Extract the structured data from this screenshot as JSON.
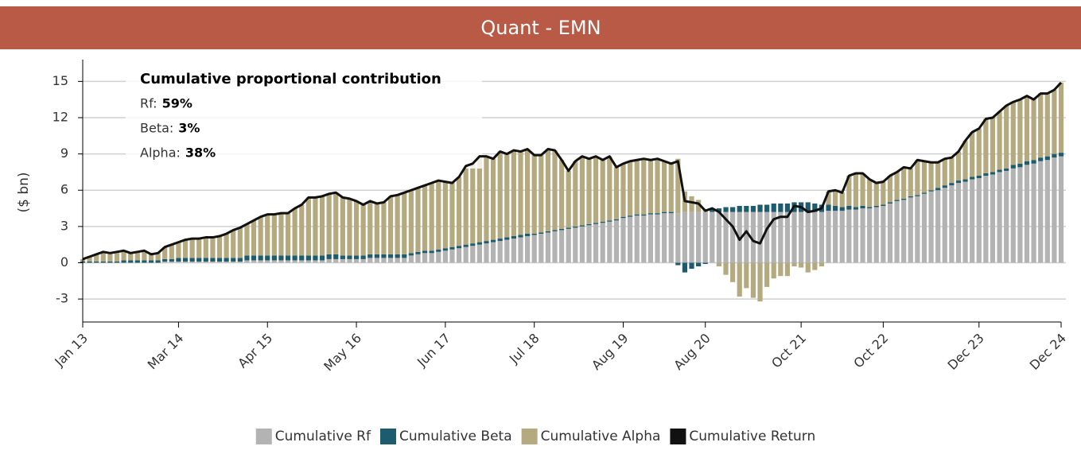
{
  "chart_data": {
    "type": "bar",
    "stacked": true,
    "title": "Quant - EMN",
    "y_label": "($ bn)",
    "categories": [
      "Jan 13",
      null,
      null,
      null,
      null,
      null,
      null,
      null,
      null,
      null,
      null,
      null,
      null,
      null,
      "Mar 14",
      null,
      null,
      null,
      null,
      null,
      null,
      null,
      null,
      null,
      null,
      null,
      null,
      "Apr 15",
      null,
      null,
      null,
      null,
      null,
      null,
      null,
      null,
      null,
      null,
      null,
      null,
      "May 16",
      null,
      null,
      null,
      null,
      null,
      null,
      null,
      null,
      null,
      null,
      null,
      null,
      "Jun 17",
      null,
      null,
      null,
      null,
      null,
      null,
      null,
      null,
      null,
      null,
      null,
      null,
      "Jul 18",
      null,
      null,
      null,
      null,
      null,
      null,
      null,
      null,
      null,
      null,
      null,
      null,
      "Aug 19",
      null,
      null,
      null,
      null,
      null,
      null,
      null,
      null,
      null,
      null,
      null,
      "Aug 20",
      null,
      null,
      null,
      null,
      null,
      null,
      null,
      null,
      null,
      null,
      null,
      null,
      null,
      "Oct 21",
      null,
      null,
      null,
      null,
      null,
      null,
      null,
      null,
      null,
      null,
      null,
      "Oct 22",
      null,
      null,
      null,
      null,
      null,
      null,
      null,
      null,
      null,
      null,
      null,
      null,
      null,
      "Dec 23",
      null,
      null,
      null,
      null,
      null,
      null,
      null,
      null,
      null,
      null,
      null,
      "Dec 24"
    ],
    "series": [
      {
        "name": "Cumulative Rf",
        "type": "bar",
        "color": "#b3b3b3",
        "values": [
          0,
          0,
          0,
          0,
          0,
          0,
          0,
          0,
          0,
          0,
          0,
          0,
          0.1,
          0.1,
          0.1,
          0.1,
          0.1,
          0.1,
          0.1,
          0.1,
          0.1,
          0.1,
          0.1,
          0.1,
          0.2,
          0.2,
          0.2,
          0.2,
          0.2,
          0.2,
          0.2,
          0.2,
          0.2,
          0.2,
          0.2,
          0.2,
          0.3,
          0.3,
          0.3,
          0.3,
          0.3,
          0.3,
          0.4,
          0.4,
          0.4,
          0.4,
          0.4,
          0.4,
          0.6,
          0.7,
          0.8,
          0.8,
          0.9,
          1.0,
          1.1,
          1.2,
          1.3,
          1.4,
          1.5,
          1.6,
          1.7,
          1.8,
          1.9,
          2.0,
          2.1,
          2.2,
          2.3,
          2.4,
          2.5,
          2.6,
          2.7,
          2.8,
          2.9,
          3.0,
          3.1,
          3.2,
          3.3,
          3.4,
          3.5,
          3.7,
          3.8,
          3.9,
          3.9,
          4.0,
          4.0,
          4.1,
          4.1,
          4.1,
          4.2,
          4.2,
          4.2,
          4.2,
          4.2,
          4.2,
          4.2,
          4.2,
          4.2,
          4.2,
          4.2,
          4.2,
          4.2,
          4.2,
          4.2,
          4.2,
          4.2,
          4.2,
          4.2,
          4.2,
          4.2,
          4.3,
          4.3,
          4.3,
          4.4,
          4.4,
          4.5,
          4.5,
          4.6,
          4.7,
          4.9,
          5.1,
          5.2,
          5.4,
          5.5,
          5.7,
          5.9,
          6.0,
          6.2,
          6.4,
          6.6,
          6.7,
          6.9,
          7.0,
          7.2,
          7.3,
          7.5,
          7.6,
          7.8,
          7.9,
          8.1,
          8.2,
          8.4,
          8.5,
          8.7,
          8.8
        ]
      },
      {
        "name": "Cumulative Beta",
        "type": "bar",
        "color": "#1d5b6e",
        "values": [
          0.1,
          0.1,
          0.1,
          0.1,
          0.1,
          0.1,
          0.2,
          0.2,
          0.2,
          0.2,
          0.2,
          0.2,
          0.2,
          0.2,
          0.3,
          0.3,
          0.3,
          0.3,
          0.3,
          0.3,
          0.3,
          0.3,
          0.3,
          0.3,
          0.4,
          0.4,
          0.4,
          0.4,
          0.4,
          0.4,
          0.4,
          0.4,
          0.4,
          0.4,
          0.4,
          0.4,
          0.4,
          0.4,
          0.3,
          0.3,
          0.3,
          0.3,
          0.3,
          0.3,
          0.3,
          0.3,
          0.3,
          0.3,
          0.2,
          0.2,
          0.2,
          0.2,
          0.2,
          0.2,
          0.2,
          0.2,
          0.2,
          0.2,
          0.2,
          0.2,
          0.2,
          0.2,
          0.2,
          0.2,
          0.2,
          0.2,
          0.1,
          0.1,
          0.1,
          0.1,
          0.1,
          0.1,
          0.1,
          0.1,
          0.1,
          0.1,
          0.1,
          0.1,
          0.1,
          0.1,
          0.1,
          0.1,
          0.1,
          0.1,
          0.1,
          0.1,
          0.1,
          -0.2,
          -0.8,
          -0.5,
          -0.3,
          -0.1,
          0.2,
          0.3,
          0.4,
          0.4,
          0.5,
          0.5,
          0.5,
          0.6,
          0.6,
          0.7,
          0.7,
          0.7,
          0.8,
          0.8,
          0.8,
          0.7,
          0.6,
          0.5,
          0.4,
          0.3,
          0.3,
          0.2,
          0.2,
          0.1,
          0.1,
          0.1,
          0.1,
          0.1,
          0.1,
          0.1,
          0.1,
          0.1,
          0.1,
          0.2,
          0.2,
          0.2,
          0.2,
          0.2,
          0.2,
          0.2,
          0.2,
          0.2,
          0.2,
          0.2,
          0.3,
          0.3,
          0.3,
          0.3,
          0.3,
          0.3,
          0.3,
          0.3
        ]
      },
      {
        "name": "Cumulative Alpha",
        "type": "bar",
        "color": "#b5aa7f",
        "values": [
          0.2,
          0.4,
          0.6,
          0.8,
          0.7,
          0.8,
          0.8,
          0.6,
          0.7,
          0.8,
          0.5,
          0.6,
          1.0,
          1.2,
          1.3,
          1.5,
          1.6,
          1.6,
          1.7,
          1.7,
          1.8,
          2.0,
          2.3,
          2.5,
          2.6,
          2.9,
          3.2,
          3.4,
          3.4,
          3.5,
          3.5,
          3.9,
          4.2,
          4.8,
          4.8,
          4.9,
          5.0,
          5.1,
          4.8,
          4.7,
          4.5,
          4.2,
          4.4,
          4.2,
          4.3,
          4.8,
          4.9,
          5.1,
          5.2,
          5.3,
          5.4,
          5.6,
          5.7,
          5.5,
          5.3,
          5.7,
          6.5,
          6.6,
          7.1,
          7.0,
          6.7,
          7.2,
          6.9,
          7.1,
          6.9,
          7.0,
          6.5,
          6.4,
          6.8,
          6.6,
          5.7,
          4.7,
          5.4,
          5.7,
          5.4,
          5.5,
          5.1,
          5.3,
          4.3,
          4.4,
          4.5,
          4.5,
          4.6,
          4.4,
          4.5,
          4.2,
          4.0,
          4.5,
          1.7,
          1.3,
          1.0,
          0.2,
          0.1,
          -0.3,
          -1.0,
          -1.6,
          -2.8,
          -2.1,
          -2.9,
          -3.2,
          -2.0,
          -1.3,
          -1.1,
          -1.1,
          -0.3,
          -0.4,
          -0.8,
          -0.6,
          -0.3,
          1.1,
          1.3,
          1.2,
          2.5,
          2.8,
          2.7,
          2.3,
          1.9,
          1.9,
          2.2,
          2.3,
          2.6,
          2.3,
          2.9,
          2.6,
          2.3,
          2.1,
          2.2,
          2.1,
          2.4,
          3.2,
          3.7,
          3.9,
          4.5,
          4.5,
          4.8,
          5.2,
          5.2,
          5.3,
          5.4,
          5.0,
          5.3,
          5.2,
          5.3,
          5.8
        ]
      },
      {
        "name": "Cumulative Return",
        "type": "line",
        "color": "#111111",
        "values": [
          0.3,
          0.5,
          0.7,
          0.9,
          0.8,
          0.9,
          1.0,
          0.8,
          0.9,
          1.0,
          0.7,
          0.8,
          1.3,
          1.5,
          1.7,
          1.9,
          2.0,
          2.0,
          2.1,
          2.1,
          2.2,
          2.4,
          2.7,
          2.9,
          3.2,
          3.5,
          3.8,
          4.0,
          4.0,
          4.1,
          4.1,
          4.5,
          4.8,
          5.4,
          5.4,
          5.5,
          5.7,
          5.8,
          5.4,
          5.3,
          5.1,
          4.8,
          5.1,
          4.9,
          5.0,
          5.5,
          5.6,
          5.8,
          6.0,
          6.2,
          6.4,
          6.6,
          6.8,
          6.7,
          6.6,
          7.1,
          8.0,
          8.2,
          8.8,
          8.8,
          8.6,
          9.2,
          9.0,
          9.3,
          9.2,
          9.4,
          8.9,
          8.9,
          9.4,
          9.3,
          8.5,
          7.6,
          8.4,
          8.8,
          8.6,
          8.8,
          8.5,
          8.8,
          7.9,
          8.2,
          8.4,
          8.5,
          8.6,
          8.5,
          8.6,
          8.4,
          8.2,
          8.4,
          5.1,
          5.0,
          4.9,
          4.3,
          4.5,
          4.2,
          3.6,
          3.0,
          1.9,
          2.6,
          1.8,
          1.6,
          2.8,
          3.6,
          3.8,
          3.8,
          4.7,
          4.6,
          4.2,
          4.3,
          4.5,
          5.9,
          6.0,
          5.8,
          7.2,
          7.4,
          7.4,
          6.9,
          6.6,
          6.7,
          7.2,
          7.5,
          7.9,
          7.8,
          8.5,
          8.4,
          8.3,
          8.3,
          8.6,
          8.7,
          9.2,
          10.1,
          10.8,
          11.1,
          11.9,
          12.0,
          12.5,
          13.0,
          13.3,
          13.5,
          13.8,
          13.5,
          14.0,
          14.0,
          14.3,
          14.9
        ]
      }
    ],
    "ylim": [
      -4.9,
      16.8
    ],
    "yticks": [
      -3,
      0,
      3,
      6,
      9,
      12,
      15
    ],
    "grid": true,
    "annotation": {
      "title": "Cumulative proportional contribution",
      "items": [
        {
          "label": "Rf:",
          "value": "59%"
        },
        {
          "label": "Beta:",
          "value": "3%"
        },
        {
          "label": "Alpha:",
          "value": "38%"
        }
      ]
    },
    "legend": "bottom"
  }
}
